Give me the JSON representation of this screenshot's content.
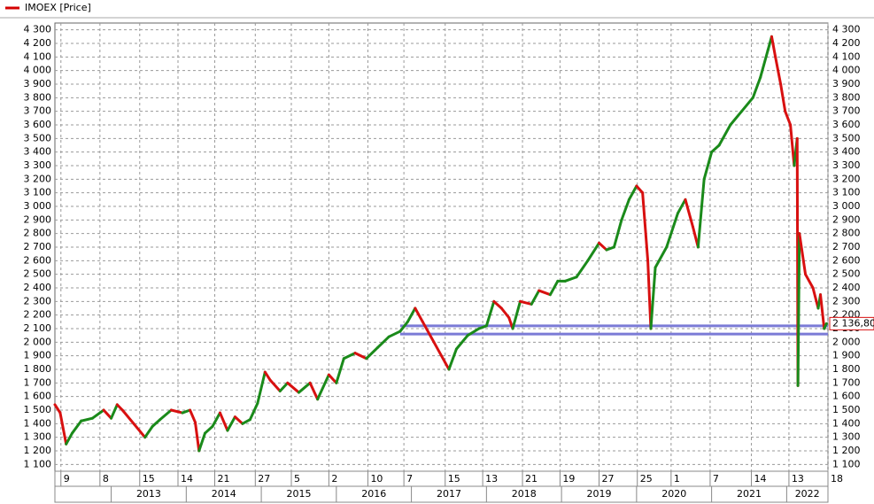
{
  "chart_data": {
    "type": "line",
    "legend": "IMOEX [Price]",
    "legend_color": "#d40000",
    "up_color": "#1a8a1a",
    "down_color": "#d81010",
    "xlim": [
      2012.25,
      2022.55
    ],
    "ylim": [
      1050,
      4350
    ],
    "yticks": [
      {
        "value": 1100,
        "label": "1 100"
      },
      {
        "value": 1200,
        "label": "1 200"
      },
      {
        "value": 1300,
        "label": "1 300"
      },
      {
        "value": 1400,
        "label": "1 400"
      },
      {
        "value": 1500,
        "label": "1 500"
      },
      {
        "value": 1600,
        "label": "1 600"
      },
      {
        "value": 1700,
        "label": "1 700"
      },
      {
        "value": 1800,
        "label": "1 800"
      },
      {
        "value": 1900,
        "label": "1 900"
      },
      {
        "value": 2000,
        "label": "2 000"
      },
      {
        "value": 2100,
        "label": "2 100"
      },
      {
        "value": 2200,
        "label": "2 200"
      },
      {
        "value": 2300,
        "label": "2 300"
      },
      {
        "value": 2400,
        "label": "2 400"
      },
      {
        "value": 2500,
        "label": "2 500"
      },
      {
        "value": 2600,
        "label": "2 600"
      },
      {
        "value": 2700,
        "label": "2 700"
      },
      {
        "value": 2800,
        "label": "2 800"
      },
      {
        "value": 2900,
        "label": "2 900"
      },
      {
        "value": 3000,
        "label": "3 000"
      },
      {
        "value": 3100,
        "label": "3 100"
      },
      {
        "value": 3200,
        "label": "3 200"
      },
      {
        "value": 3300,
        "label": "3 300"
      },
      {
        "value": 3400,
        "label": "3 400"
      },
      {
        "value": 3500,
        "label": "3 500"
      },
      {
        "value": 3600,
        "label": "3 600"
      },
      {
        "value": 3700,
        "label": "3 700"
      },
      {
        "value": 3800,
        "label": "3 800"
      },
      {
        "value": 3900,
        "label": "3 900"
      },
      {
        "value": 4000,
        "label": "4 000"
      },
      {
        "value": 4100,
        "label": "4 100"
      },
      {
        "value": 4200,
        "label": "4 200"
      },
      {
        "value": 4300,
        "label": "4 300"
      }
    ],
    "xticks": [
      {
        "value": 2012.33,
        "label": "9"
      },
      {
        "value": 2012.85,
        "label": "8"
      },
      {
        "value": 2013.38,
        "label": "15"
      },
      {
        "value": 2013.89,
        "label": "14"
      },
      {
        "value": 2014.38,
        "label": "21"
      },
      {
        "value": 2014.92,
        "label": "27"
      },
      {
        "value": 2015.4,
        "label": "5"
      },
      {
        "value": 2015.9,
        "label": "2"
      },
      {
        "value": 2016.42,
        "label": "10"
      },
      {
        "value": 2016.9,
        "label": "7"
      },
      {
        "value": 2017.45,
        "label": "15"
      },
      {
        "value": 2017.95,
        "label": "13"
      },
      {
        "value": 2018.48,
        "label": "21"
      },
      {
        "value": 2018.98,
        "label": "19"
      },
      {
        "value": 2019.5,
        "label": "27"
      },
      {
        "value": 2020.01,
        "label": "25"
      },
      {
        "value": 2020.46,
        "label": "1"
      },
      {
        "value": 2020.98,
        "label": "7"
      },
      {
        "value": 2021.53,
        "label": "14"
      },
      {
        "value": 2022.03,
        "label": "13"
      },
      {
        "value": 2022.55,
        "label": "18"
      }
    ],
    "years": [
      2013,
      2014,
      2015,
      2016,
      2017,
      2018,
      2019,
      2020,
      2021,
      2022
    ],
    "x": [
      2012.25,
      2012.32,
      2012.4,
      2012.48,
      2012.6,
      2012.75,
      2012.9,
      2013.0,
      2013.08,
      2013.15,
      2013.3,
      2013.45,
      2013.55,
      2013.65,
      2013.8,
      2013.95,
      2014.05,
      2014.12,
      2014.17,
      2014.25,
      2014.35,
      2014.45,
      2014.55,
      2014.65,
      2014.75,
      2014.85,
      2014.95,
      2015.05,
      2015.12,
      2015.25,
      2015.35,
      2015.5,
      2015.65,
      2015.75,
      2015.9,
      2016.0,
      2016.1,
      2016.25,
      2016.4,
      2016.55,
      2016.7,
      2016.85,
      2016.95,
      2017.05,
      2017.15,
      2017.3,
      2017.45,
      2017.5,
      2017.6,
      2017.75,
      2017.9,
      2018.0,
      2018.1,
      2018.2,
      2018.3,
      2018.35,
      2018.45,
      2018.6,
      2018.7,
      2018.85,
      2018.95,
      2019.05,
      2019.2,
      2019.35,
      2019.5,
      2019.6,
      2019.7,
      2019.8,
      2019.9,
      2020.0,
      2020.08,
      2020.15,
      2020.19,
      2020.25,
      2020.4,
      2020.55,
      2020.65,
      2020.75,
      2020.82,
      2020.9,
      2021.0,
      2021.1,
      2021.25,
      2021.4,
      2021.55,
      2021.65,
      2021.75,
      2021.8,
      2021.85,
      2021.92,
      2021.98,
      2022.05,
      2022.1,
      2022.14,
      2022.15,
      2022.17,
      2022.25,
      2022.35,
      2022.42,
      2022.45,
      2022.5,
      2022.53
    ],
    "values": [
      1540,
      1480,
      1250,
      1330,
      1420,
      1440,
      1500,
      1440,
      1540,
      1500,
      1400,
      1300,
      1380,
      1430,
      1500,
      1480,
      1500,
      1410,
      1200,
      1330,
      1380,
      1480,
      1350,
      1450,
      1400,
      1430,
      1550,
      1780,
      1720,
      1640,
      1700,
      1630,
      1700,
      1580,
      1760,
      1700,
      1880,
      1920,
      1880,
      1960,
      2040,
      2080,
      2150,
      2250,
      2150,
      2000,
      1850,
      1800,
      1950,
      2050,
      2100,
      2120,
      2300,
      2250,
      2180,
      2100,
      2300,
      2280,
      2380,
      2350,
      2450,
      2450,
      2480,
      2600,
      2730,
      2680,
      2700,
      2900,
      3050,
      3150,
      3100,
      2600,
      2100,
      2550,
      2700,
      2950,
      3050,
      2850,
      2700,
      3200,
      3400,
      3450,
      3600,
      3700,
      3800,
      3950,
      4150,
      4250,
      4100,
      3900,
      3700,
      3600,
      3300,
      3500,
      1680,
      2800,
      2500,
      2400,
      2250,
      2350,
      2100,
      2136.8
    ],
    "levels": [
      2120,
      2060
    ],
    "levels_start": 2016.85,
    "level_color": "#7b7bd6",
    "last_price": {
      "value": 2136.8,
      "label": "2 136,80"
    }
  }
}
